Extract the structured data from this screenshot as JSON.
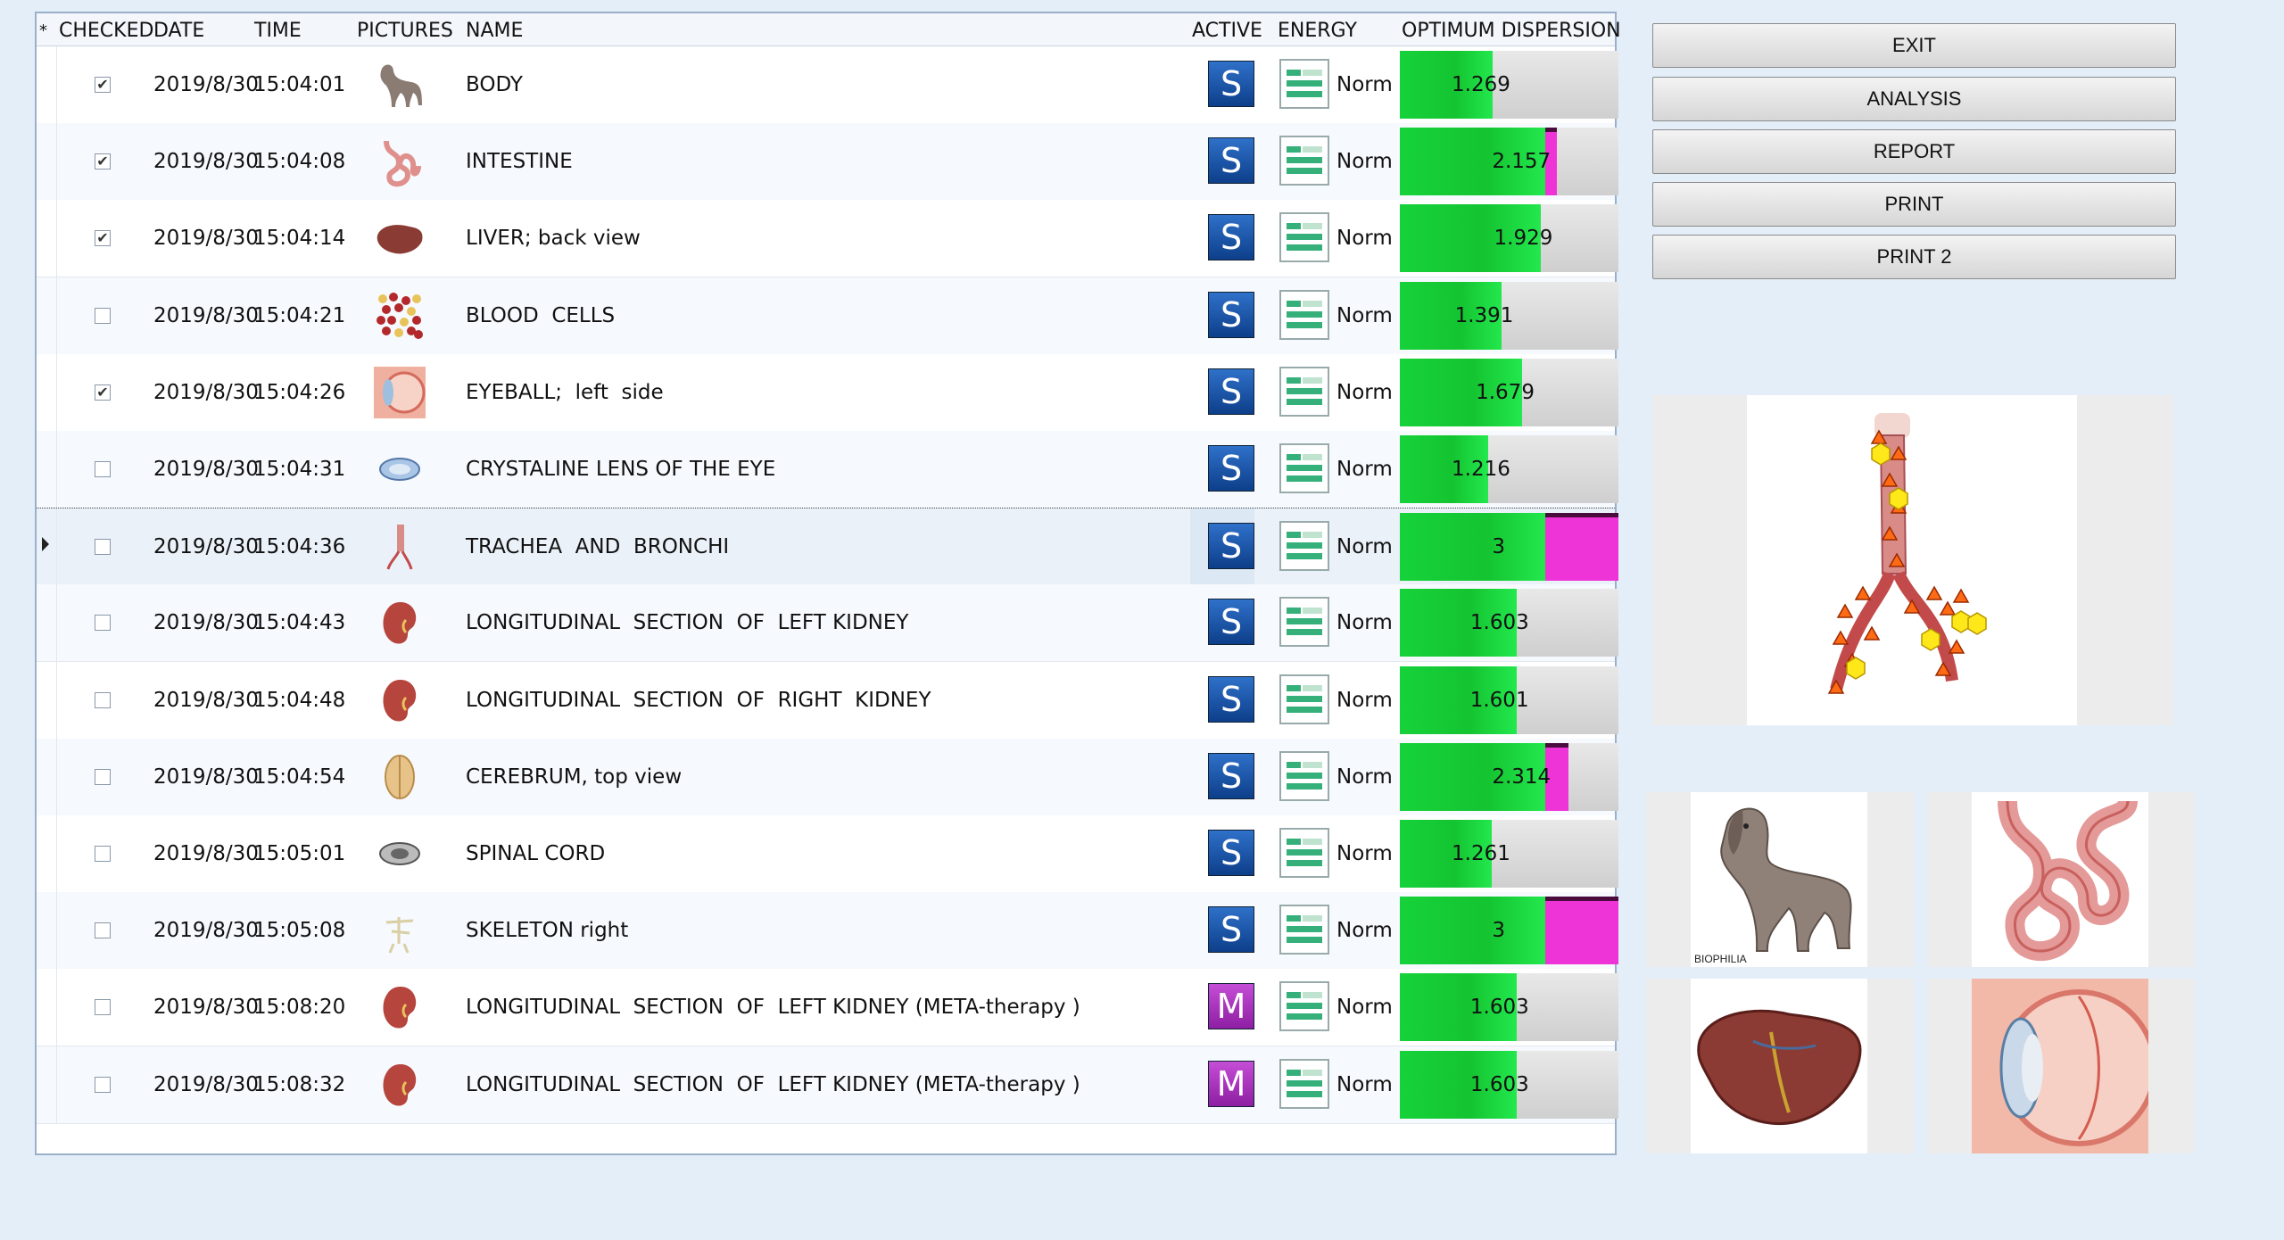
{
  "header": {
    "sort_marker": "*",
    "checked": "CHECKED",
    "date": "DATE",
    "time": "TIME",
    "pictures": "PICTURES",
    "name": "NAME",
    "active": "ACTIVE",
    "energy": "ENERGY",
    "dispersion": "OPTIMUM DISPERSION"
  },
  "rows": [
    {
      "checked": true,
      "date": "2019/8/30",
      "time": "15:04:01",
      "name": "BODY",
      "active": "S",
      "energy": "Normal",
      "value": "1.269",
      "level": 1.269,
      "pic": "dog"
    },
    {
      "checked": true,
      "date": "2019/8/30",
      "time": "15:04:08",
      "name": "INTESTINE",
      "active": "S",
      "energy": "Normal",
      "value": "2.157",
      "level": 2.157,
      "pic": "intestine"
    },
    {
      "checked": true,
      "date": "2019/8/30",
      "time": "15:04:14",
      "name": "LIVER; back view",
      "active": "S",
      "energy": "Normal",
      "value": "1.929",
      "level": 1.929,
      "pic": "liver"
    },
    {
      "checked": false,
      "date": "2019/8/30",
      "time": "15:04:21",
      "name": "BLOOD  CELLS",
      "active": "S",
      "energy": "Normal",
      "value": "1.391",
      "level": 1.391,
      "pic": "cells"
    },
    {
      "checked": true,
      "date": "2019/8/30",
      "time": "15:04:26",
      "name": "EYEBALL;  left  side",
      "active": "S",
      "energy": "Normal",
      "value": "1.679",
      "level": 1.679,
      "pic": "eyeball"
    },
    {
      "checked": false,
      "date": "2019/8/30",
      "time": "15:04:31",
      "name": "CRYSTALINE LENS OF THE EYE",
      "active": "S",
      "energy": "Normal",
      "value": "1.216",
      "level": 1.216,
      "pic": "lens"
    },
    {
      "checked": false,
      "date": "2019/8/30",
      "time": "15:04:36",
      "name": "TRACHEA  AND  BRONCHI",
      "active": "S",
      "energy": "Normal",
      "value": "3",
      "level": 3,
      "pic": "trachea",
      "selected": true
    },
    {
      "checked": false,
      "date": "2019/8/30",
      "time": "15:04:43",
      "name": "LONGITUDINAL  SECTION  OF  LEFT KIDNEY",
      "active": "S",
      "energy": "Normal",
      "value": "1.603",
      "level": 1.603,
      "pic": "kidney"
    },
    {
      "checked": false,
      "date": "2019/8/30",
      "time": "15:04:48",
      "name": "LONGITUDINAL  SECTION  OF  RIGHT  KIDNEY",
      "active": "S",
      "energy": "Normal",
      "value": "1.601",
      "level": 1.601,
      "pic": "kidney"
    },
    {
      "checked": false,
      "date": "2019/8/30",
      "time": "15:04:54",
      "name": "CEREBRUM, top view",
      "active": "S",
      "energy": "Normal",
      "value": "2.314",
      "level": 2.314,
      "pic": "cerebrum"
    },
    {
      "checked": false,
      "date": "2019/8/30",
      "time": "15:05:01",
      "name": "SPINAL CORD",
      "active": "S",
      "energy": "Normal",
      "value": "1.261",
      "level": 1.261,
      "pic": "spinal"
    },
    {
      "checked": false,
      "date": "2019/8/30",
      "time": "15:05:08",
      "name": "SKELETON right",
      "active": "S",
      "energy": "Normal",
      "value": "3",
      "level": 3,
      "pic": "skeleton"
    },
    {
      "checked": false,
      "date": "2019/8/30",
      "time": "15:08:20",
      "name": "LONGITUDINAL  SECTION  OF  LEFT KIDNEY (META-therapy )",
      "active": "M",
      "energy": "Normal",
      "value": "1.603",
      "level": 1.603,
      "pic": "kidney"
    },
    {
      "checked": false,
      "date": "2019/8/30",
      "time": "15:08:32",
      "name": "LONGITUDINAL  SECTION  OF  LEFT KIDNEY (META-therapy )",
      "active": "M",
      "energy": "Normal",
      "value": "1.603",
      "level": 1.603,
      "pic": "kidney"
    }
  ],
  "buttons": {
    "exit": "EXIT",
    "analysis": "ANALYSIS",
    "report": "REPORT",
    "print": "PRINT",
    "print2": "PRINT 2"
  },
  "thumbs": {
    "caption": "BIOPHILIA"
  },
  "colors": {
    "background": "#e4eef9",
    "bar_green": "#16d23a",
    "bar_overflow": "#ee34d6",
    "badge_s": "#1f5bb0",
    "badge_m": "#a531bb"
  }
}
